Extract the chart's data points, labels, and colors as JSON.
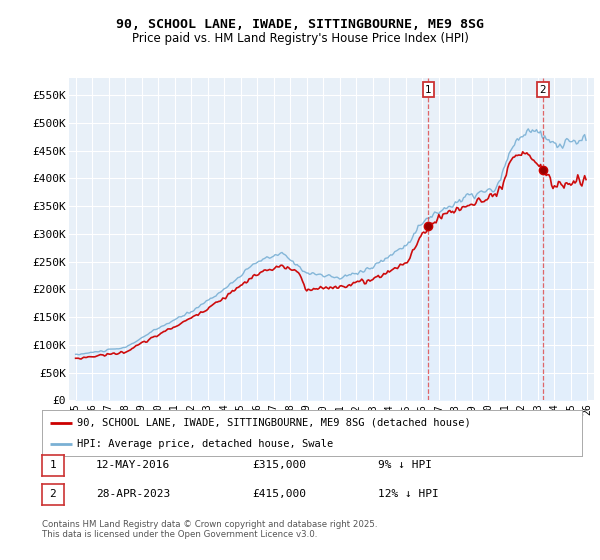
{
  "title": "90, SCHOOL LANE, IWADE, SITTINGBOURNE, ME9 8SG",
  "subtitle": "Price paid vs. HM Land Registry's House Price Index (HPI)",
  "ylabel_ticks": [
    "£0",
    "£50K",
    "£100K",
    "£150K",
    "£200K",
    "£250K",
    "£300K",
    "£350K",
    "£400K",
    "£450K",
    "£500K",
    "£550K"
  ],
  "ytick_values": [
    0,
    50000,
    100000,
    150000,
    200000,
    250000,
    300000,
    350000,
    400000,
    450000,
    500000,
    550000
  ],
  "ylim": [
    0,
    580000
  ],
  "xlim_start": 1995,
  "xlim_end": 2026,
  "legend_line1": "90, SCHOOL LANE, IWADE, SITTINGBOURNE, ME9 8SG (detached house)",
  "legend_line2": "HPI: Average price, detached house, Swale",
  "annotation1_date": "12-MAY-2016",
  "annotation1_price": "£315,000",
  "annotation1_hpi": "9% ↓ HPI",
  "annotation2_date": "28-APR-2023",
  "annotation2_price": "£415,000",
  "annotation2_hpi": "12% ↓ HPI",
  "footer": "Contains HM Land Registry data © Crown copyright and database right 2025.\nThis data is licensed under the Open Government Licence v3.0.",
  "line_color_red": "#cc0000",
  "line_color_blue": "#7ab0d4",
  "fill_color_blue": "#ddeeff",
  "background_color": "#ffffff",
  "plot_bg_color": "#e8f0f8",
  "grid_color": "#cccccc",
  "sale1_year": 2016.375,
  "sale1_y": 315000,
  "sale2_year": 2023.292,
  "sale2_y": 415000,
  "vline_color": "#dd4444"
}
